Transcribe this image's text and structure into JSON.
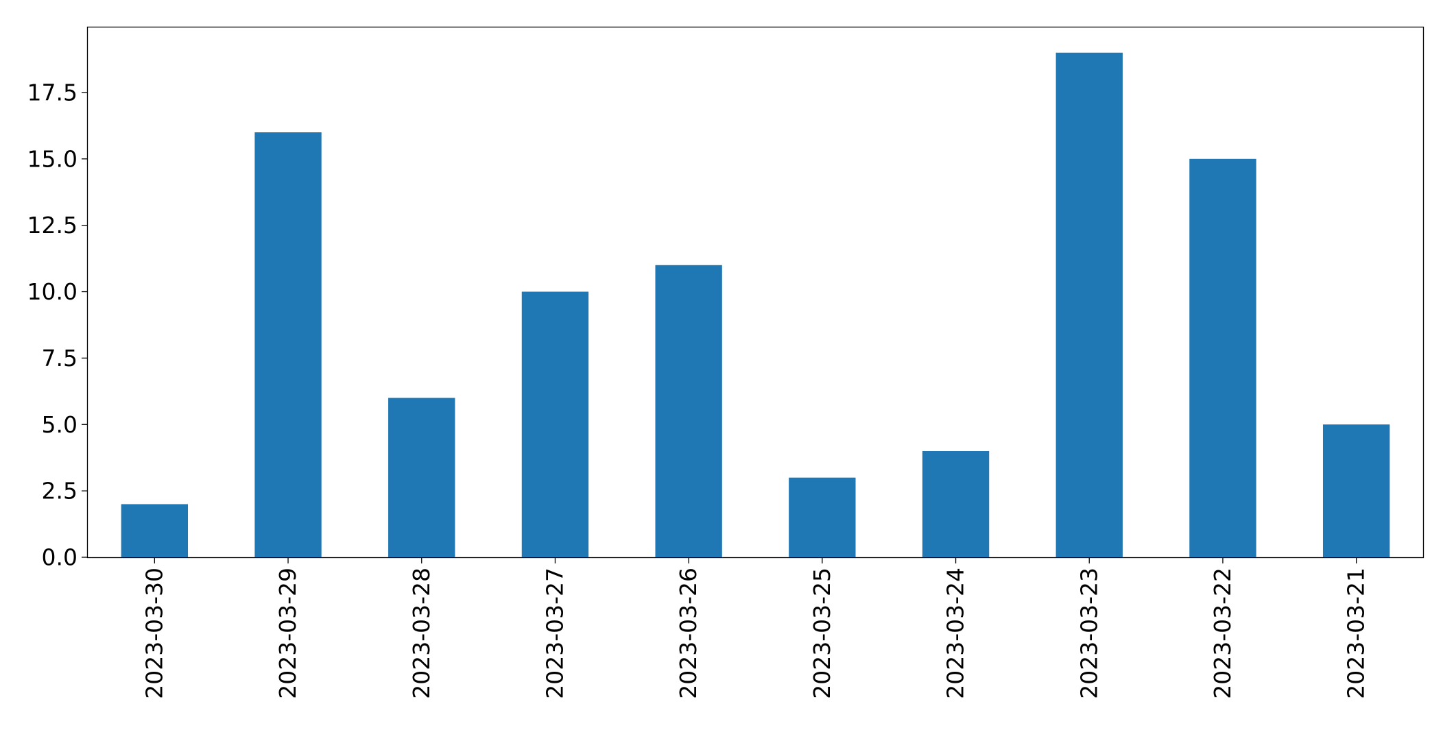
{
  "chart_data": {
    "type": "bar",
    "title": "",
    "xlabel": "",
    "ylabel": "",
    "categories": [
      "2023-03-30",
      "2023-03-29",
      "2023-03-28",
      "2023-03-27",
      "2023-03-26",
      "2023-03-25",
      "2023-03-24",
      "2023-03-23",
      "2023-03-22",
      "2023-03-21"
    ],
    "values": [
      2,
      16,
      6,
      10,
      11,
      3,
      4,
      19,
      15,
      5
    ],
    "ylim": [
      0,
      19.95
    ],
    "yticks": [
      0,
      2.5,
      5,
      7.5,
      10,
      12.5,
      15,
      17.5
    ],
    "ytick_labels": [
      "0.0",
      "2.5",
      "5.0",
      "7.5",
      "10.0",
      "12.5",
      "15.0",
      "17.5"
    ],
    "bar_color": "#1f77b4",
    "grid": false,
    "legend": "none"
  }
}
